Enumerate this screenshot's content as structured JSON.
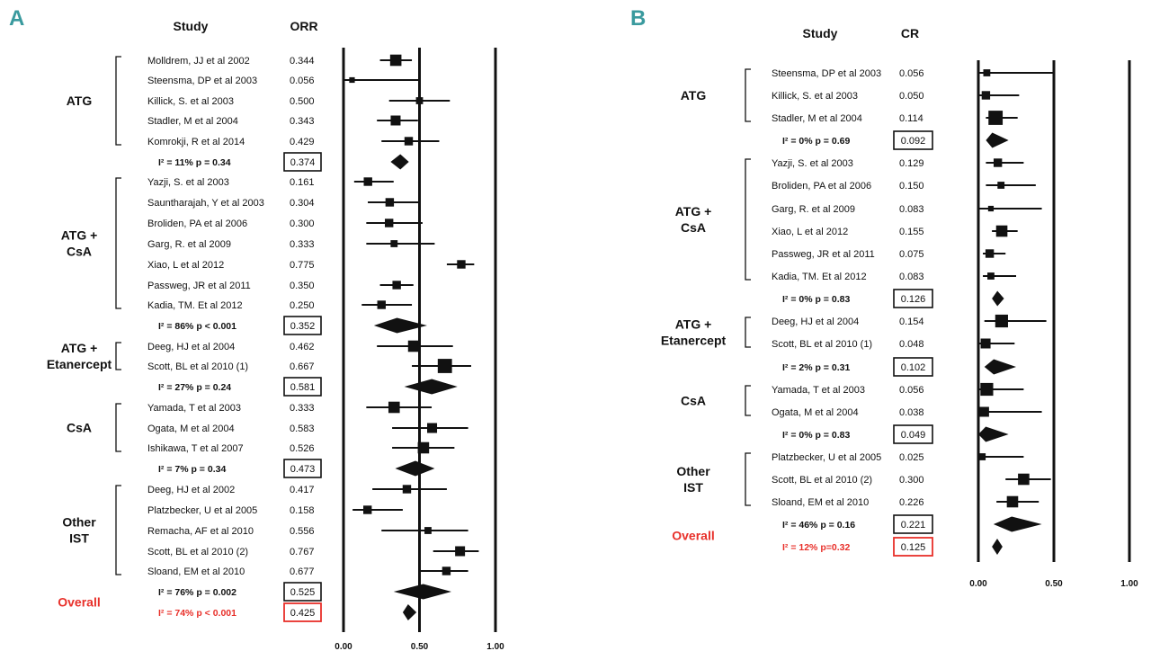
{
  "chart_data": [
    {
      "type": "forest",
      "panel_label": "A",
      "col_study": "Study",
      "col_value": "ORR",
      "xlim": [
        0,
        1
      ],
      "xticks": [
        "0.00",
        "0.50",
        "1.00"
      ],
      "groups": [
        {
          "label": "ATG",
          "studies": [
            {
              "name": "Molldrem, JJ et al 2002",
              "value": "0.344",
              "est": 0.344,
              "lo": 0.24,
              "hi": 0.45,
              "w": 3
            },
            {
              "name": "Steensma, DP et al 2003",
              "value": "0.056",
              "est": 0.056,
              "lo": 0.0,
              "hi": 0.5,
              "w": 1
            },
            {
              "name": "Killick, S. et al 2003",
              "value": "0.500",
              "est": 0.5,
              "lo": 0.3,
              "hi": 0.7,
              "w": 1.5
            },
            {
              "name": "Stadler, M et al 2004",
              "value": "0.343",
              "est": 0.343,
              "lo": 0.22,
              "hi": 0.49,
              "w": 2.5
            },
            {
              "name": "Komrokji, R et al 2014",
              "value": "0.429",
              "est": 0.429,
              "lo": 0.25,
              "hi": 0.63,
              "w": 2
            }
          ],
          "summary": {
            "het": "I² = 11%   p = 0.34",
            "value": "0.374",
            "est": 0.374,
            "lo": 0.31,
            "hi": 0.43
          }
        },
        {
          "label": "ATG + CsA",
          "studies": [
            {
              "name": "Yazji, S. et al 2003",
              "value": "0.161",
              "est": 0.161,
              "lo": 0.07,
              "hi": 0.33,
              "w": 2
            },
            {
              "name": "Sauntharajah, Y et al 2003",
              "value": "0.304",
              "est": 0.304,
              "lo": 0.16,
              "hi": 0.5,
              "w": 2
            },
            {
              "name": "Broliden, PA et al 2006",
              "value": "0.300",
              "est": 0.3,
              "lo": 0.15,
              "hi": 0.52,
              "w": 2
            },
            {
              "name": "Garg, R. et al 2009",
              "value": "0.333",
              "est": 0.333,
              "lo": 0.15,
              "hi": 0.6,
              "w": 1.5
            },
            {
              "name": "Xiao, L et al 2012",
              "value": "0.775",
              "est": 0.775,
              "lo": 0.68,
              "hi": 0.86,
              "w": 2
            },
            {
              "name": "Passweg, JR et al 2011",
              "value": "0.350",
              "est": 0.35,
              "lo": 0.24,
              "hi": 0.46,
              "w": 2
            },
            {
              "name": "Kadia, TM. Et al 2012",
              "value": "0.250",
              "est": 0.25,
              "lo": 0.12,
              "hi": 0.45,
              "w": 2
            }
          ],
          "summary": {
            "het": "I² = 86%   p < 0.001",
            "value": "0.352",
            "est": 0.352,
            "lo": 0.2,
            "hi": 0.55
          }
        },
        {
          "label": "ATG + Etanercept",
          "studies": [
            {
              "name": "Deeg, HJ et al 2004",
              "value": "0.462",
              "est": 0.462,
              "lo": 0.22,
              "hi": 0.72,
              "w": 3
            },
            {
              "name": "Scott, BL et al 2010 (1)",
              "value": "0.667",
              "est": 0.667,
              "lo": 0.45,
              "hi": 0.84,
              "w": 4
            }
          ],
          "summary": {
            "het": "I² = 27%   p = 0.24",
            "value": "0.581",
            "est": 0.581,
            "lo": 0.4,
            "hi": 0.75
          }
        },
        {
          "label": "CsA",
          "studies": [
            {
              "name": "Yamada, T et al 2003",
              "value": "0.333",
              "est": 0.333,
              "lo": 0.15,
              "hi": 0.58,
              "w": 3
            },
            {
              "name": "Ogata, M et al 2004",
              "value": "0.583",
              "est": 0.583,
              "lo": 0.32,
              "hi": 0.82,
              "w": 2.5
            },
            {
              "name": "Ishikawa, T et al 2007",
              "value": "0.526",
              "est": 0.526,
              "lo": 0.32,
              "hi": 0.73,
              "w": 3
            }
          ],
          "summary": {
            "het": "I² = 7%   p = 0.34",
            "value": "0.473",
            "est": 0.473,
            "lo": 0.34,
            "hi": 0.6
          }
        },
        {
          "label": "Other IST",
          "studies": [
            {
              "name": "Deeg, HJ et al 2002",
              "value": "0.417",
              "est": 0.417,
              "lo": 0.19,
              "hi": 0.68,
              "w": 2
            },
            {
              "name": "Platzbecker, U et al 2005",
              "value": "0.158",
              "est": 0.158,
              "lo": 0.06,
              "hi": 0.39,
              "w": 2
            },
            {
              "name": "Remacha, AF et al 2010",
              "value": "0.556",
              "est": 0.556,
              "lo": 0.25,
              "hi": 0.82,
              "w": 1.5
            },
            {
              "name": "Scott, BL et al 2010 (2)",
              "value": "0.767",
              "est": 0.767,
              "lo": 0.59,
              "hi": 0.89,
              "w": 2.5
            },
            {
              "name": "Sloand, EM et al 2010",
              "value": "0.677",
              "est": 0.677,
              "lo": 0.5,
              "hi": 0.82,
              "w": 2
            }
          ],
          "summary": {
            "het": "I² = 76%   p = 0.002",
            "value": "0.525",
            "est": 0.525,
            "lo": 0.33,
            "hi": 0.71
          }
        }
      ],
      "overall": {
        "label": "Overall",
        "het": "I² = 74%   p < 0.001",
        "value": "0.425",
        "est": 0.425,
        "lo": 0.39,
        "hi": 0.48
      }
    },
    {
      "type": "forest",
      "panel_label": "B",
      "col_study": "Study",
      "col_value": "CR",
      "xlim": [
        0,
        1
      ],
      "xticks": [
        "0.00",
        "0.50",
        "1.00"
      ],
      "groups": [
        {
          "label": "ATG",
          "studies": [
            {
              "name": "Steensma, DP et al 2003",
              "value": "0.056",
              "est": 0.056,
              "lo": 0.0,
              "hi": 0.5,
              "w": 1.5
            },
            {
              "name": "Killick, S. et al 2003",
              "value": "0.050",
              "est": 0.05,
              "lo": 0.0,
              "hi": 0.27,
              "w": 2
            },
            {
              "name": "Stadler, M et al 2004",
              "value": "0.114",
              "est": 0.114,
              "lo": 0.05,
              "hi": 0.26,
              "w": 4
            }
          ],
          "summary": {
            "het": "I² = 0%   p = 0.69",
            "value": "0.092",
            "est": 0.092,
            "lo": 0.05,
            "hi": 0.2
          }
        },
        {
          "label": "ATG + CsA",
          "studies": [
            {
              "name": "Yazji, S. et al 2003",
              "value": "0.129",
              "est": 0.129,
              "lo": 0.05,
              "hi": 0.3,
              "w": 2
            },
            {
              "name": "Broliden, PA et al 2006",
              "value": "0.150",
              "est": 0.15,
              "lo": 0.05,
              "hi": 0.38,
              "w": 1.5
            },
            {
              "name": "Garg, R. et al 2009",
              "value": "0.083",
              "est": 0.083,
              "lo": 0.0,
              "hi": 0.42,
              "w": 1
            },
            {
              "name": "Xiao, L et al 2012",
              "value": "0.155",
              "est": 0.155,
              "lo": 0.09,
              "hi": 0.26,
              "w": 3
            },
            {
              "name": "Passweg, JR et al 2011",
              "value": "0.075",
              "est": 0.075,
              "lo": 0.03,
              "hi": 0.18,
              "w": 2
            },
            {
              "name": "Kadia, TM. Et al 2012",
              "value": "0.083",
              "est": 0.083,
              "lo": 0.03,
              "hi": 0.25,
              "w": 1.5
            }
          ],
          "summary": {
            "het": "I² = 0%   p = 0.83",
            "value": "0.126",
            "est": 0.126,
            "lo": 0.09,
            "hi": 0.17
          }
        },
        {
          "label": "ATG + Etanercept",
          "studies": [
            {
              "name": "Deeg, HJ et al 2004",
              "value": "0.154",
              "est": 0.154,
              "lo": 0.04,
              "hi": 0.45,
              "w": 3.5
            },
            {
              "name": "Scott, BL et al 2010 (1)",
              "value": "0.048",
              "est": 0.048,
              "lo": 0.0,
              "hi": 0.24,
              "w": 2.5
            }
          ],
          "summary": {
            "het": "I² = 2%   p = 0.31",
            "value": "0.102",
            "est": 0.102,
            "lo": 0.04,
            "hi": 0.25
          }
        },
        {
          "label": "CsA",
          "studies": [
            {
              "name": "Yamada, T et al 2003",
              "value": "0.056",
              "est": 0.056,
              "lo": 0.0,
              "hi": 0.3,
              "w": 3.5
            },
            {
              "name": "Ogata, M et al 2004",
              "value": "0.038",
              "est": 0.038,
              "lo": 0.0,
              "hi": 0.42,
              "w": 2.5
            }
          ],
          "summary": {
            "het": "I² = 0%   p = 0.83",
            "value": "0.049",
            "est": 0.049,
            "lo": 0.0,
            "hi": 0.2
          }
        },
        {
          "label": "Other IST",
          "studies": [
            {
              "name": "Platzbecker, U et al 2005",
              "value": "0.025",
              "est": 0.025,
              "lo": 0.0,
              "hi": 0.3,
              "w": 1.5
            },
            {
              "name": "Scott, BL et al 2010 (2)",
              "value": "0.300",
              "est": 0.3,
              "lo": 0.18,
              "hi": 0.48,
              "w": 3
            },
            {
              "name": "Sloand, EM et al 2010",
              "value": "0.226",
              "est": 0.226,
              "lo": 0.12,
              "hi": 0.4,
              "w": 3
            }
          ],
          "summary": {
            "het": "I² = 46%   p = 0.16",
            "value": "0.221",
            "est": 0.221,
            "lo": 0.1,
            "hi": 0.42
          }
        }
      ],
      "overall": {
        "label": "Overall",
        "het": "I² = 12%   p=0.32",
        "value": "0.125",
        "est": 0.125,
        "lo": 0.09,
        "hi": 0.16
      }
    }
  ],
  "colors": {
    "panel_label": "#3a9a9e",
    "ink": "#111111",
    "overall": "#e8302a"
  }
}
